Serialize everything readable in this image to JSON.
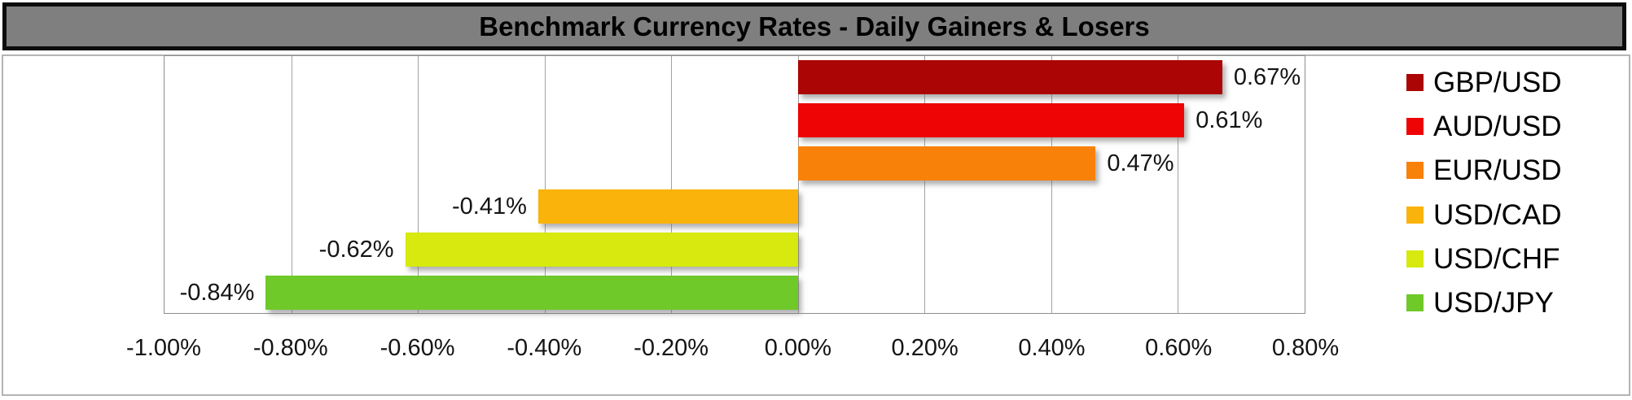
{
  "title": "Benchmark Currency Rates - Daily Gainers & Losers",
  "colors": {
    "title_bar_bg": "#7f7f7f",
    "title_bar_border": "#0c0c0c",
    "chart_border": "#b4b4b4",
    "plot_border": "#8e8e8e",
    "gridline": "#a2a2a2",
    "label_text": "#141414"
  },
  "chart_data": {
    "type": "bar",
    "orientation": "horizontal",
    "title": "Benchmark Currency Rates - Daily Gainers & Losers",
    "categories": [
      "GBP/USD",
      "AUD/USD",
      "EUR/USD",
      "USD/CAD",
      "USD/CHF",
      "USD/JPY"
    ],
    "values": [
      0.67,
      0.61,
      0.47,
      -0.41,
      -0.62,
      -0.84
    ],
    "value_labels": [
      "0.67%",
      "0.61%",
      "0.47%",
      "-0.41%",
      "-0.62%",
      "-0.84%"
    ],
    "bar_colors": [
      "#ac0505",
      "#ee0404",
      "#f8810a",
      "#fab30b",
      "#d7e90e",
      "#6fc929"
    ],
    "x_ticks": [
      "-1.00%",
      "-0.80%",
      "-0.60%",
      "-0.40%",
      "-0.20%",
      "0.00%",
      "0.20%",
      "0.40%",
      "0.60%",
      "0.80%"
    ],
    "xlim": [
      -1.0,
      0.8
    ],
    "xlabel": "",
    "ylabel": "",
    "grid": true,
    "legend_position": "right",
    "legend": [
      "GBP/USD",
      "AUD/USD",
      "EUR/USD",
      "USD/CAD",
      "USD/CHF",
      "USD/JPY"
    ]
  }
}
